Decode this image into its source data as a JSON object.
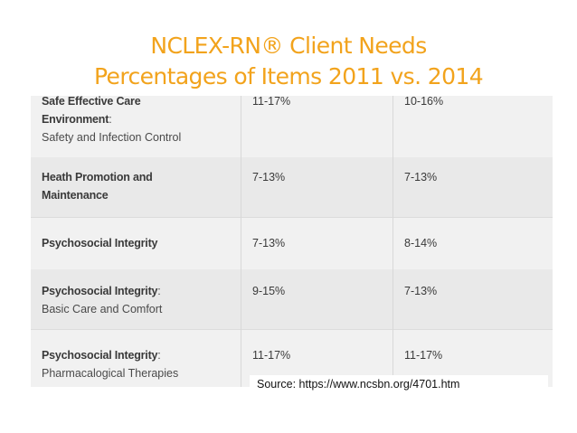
{
  "title": {
    "line1": "NCLEX-RN® Client Needs",
    "line2": "Percentages of Items 2011 vs. 2014"
  },
  "table": {
    "rows": [
      {
        "category": "Safe Effective Care",
        "category2": "Environment",
        "suffix": ":",
        "sub": "Safety and Infection Control",
        "y2011": "11-17%",
        "y2014": "10-16%"
      },
      {
        "category": "Heath Promotion and",
        "category2": "Maintenance",
        "suffix": "",
        "sub": "",
        "y2011": "7-13%",
        "y2014": "7-13%"
      },
      {
        "category": "Psychosocial Integrity",
        "category2": "",
        "suffix": "",
        "sub": "",
        "y2011": "7-13%",
        "y2014": "8-14%"
      },
      {
        "category": "Psychosocial Integrity",
        "category2": "",
        "suffix": ":",
        "sub": "Basic Care and Comfort",
        "y2011": "9-15%",
        "y2014": "7-13%"
      },
      {
        "category": "Psychosocial Integrity",
        "category2": "",
        "suffix": ":",
        "sub": "Pharmacalogical Therapies",
        "y2011": "11-17%",
        "y2014": "11-17%"
      }
    ]
  },
  "source": "Source:  https://www.ncsbn.org/4701.htm"
}
